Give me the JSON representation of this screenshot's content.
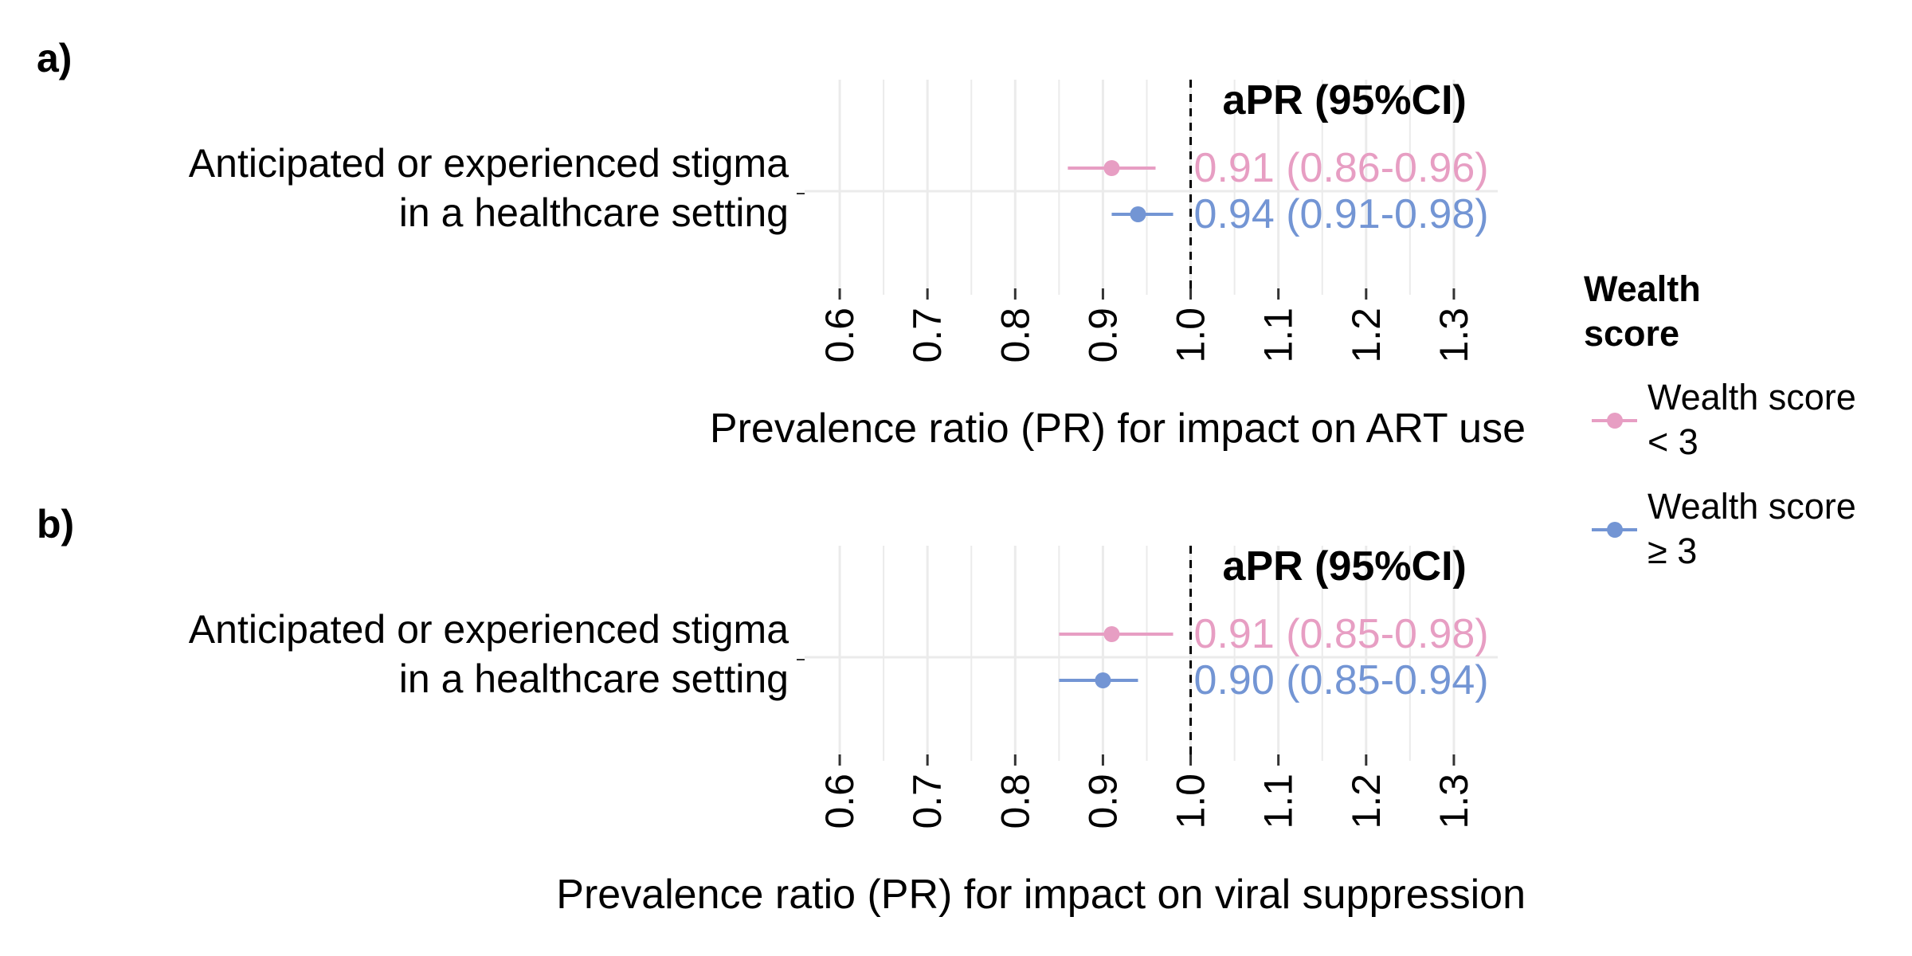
{
  "chart_data": [
    {
      "type": "forest",
      "panel_label": "a)",
      "xlabel": "Prevalence ratio (PR) for impact on ART use",
      "ylabel": "",
      "xlim": [
        0.56,
        1.35
      ],
      "x_ticks": [
        "0.6",
        "0.7",
        "0.8",
        "0.9",
        "1.0",
        "1.1",
        "1.2",
        "1.3"
      ],
      "x_tick_values": [
        0.6,
        0.7,
        0.8,
        0.9,
        1.0,
        1.1,
        1.2,
        1.3
      ],
      "reference_line": 1.0,
      "grid": true,
      "estimate_header": "aPR (95%CI)",
      "categories": [
        {
          "label_lines": [
            "Anticipated or experienced stigma",
            "in a healthcare setting"
          ]
        }
      ],
      "series": [
        {
          "name": "Wealth score < 3",
          "estimate": 0.91,
          "lower": 0.86,
          "upper": 0.96,
          "label": "0.91 (0.86-0.96)"
        },
        {
          "name": "Wealth score ≥ 3",
          "estimate": 0.94,
          "lower": 0.91,
          "upper": 0.98,
          "label": "0.94 (0.91-0.98)"
        }
      ]
    },
    {
      "type": "forest",
      "panel_label": "b)",
      "xlabel": "Prevalence ratio (PR) for impact on viral suppression",
      "ylabel": "",
      "xlim": [
        0.56,
        1.35
      ],
      "x_ticks": [
        "0.6",
        "0.7",
        "0.8",
        "0.9",
        "1.0",
        "1.1",
        "1.2",
        "1.3"
      ],
      "x_tick_values": [
        0.6,
        0.7,
        0.8,
        0.9,
        1.0,
        1.1,
        1.2,
        1.3
      ],
      "reference_line": 1.0,
      "grid": true,
      "estimate_header": "aPR (95%CI)",
      "categories": [
        {
          "label_lines": [
            "Anticipated or experienced stigma",
            "in a healthcare setting"
          ]
        }
      ],
      "series": [
        {
          "name": "Wealth score < 3",
          "estimate": 0.91,
          "lower": 0.85,
          "upper": 0.98,
          "label": "0.91 (0.85-0.98)"
        },
        {
          "name": "Wealth score ≥ 3",
          "estimate": 0.9,
          "lower": 0.85,
          "upper": 0.94,
          "label": "0.90 (0.85-0.94)"
        }
      ]
    }
  ],
  "legend": {
    "title_lines": [
      "Wealth",
      "score"
    ],
    "placement": "right",
    "items": [
      {
        "label_lines": [
          "Wealth score",
          "< 3"
        ],
        "color": "#E79EC3"
      },
      {
        "label_lines": [
          "Wealth score",
          "≥ 3"
        ],
        "color": "#7395D4"
      }
    ]
  },
  "colors": {
    "series": [
      "#E79EC3",
      "#7395D4"
    ],
    "grid": "#ebebeb",
    "text": "#000000"
  }
}
